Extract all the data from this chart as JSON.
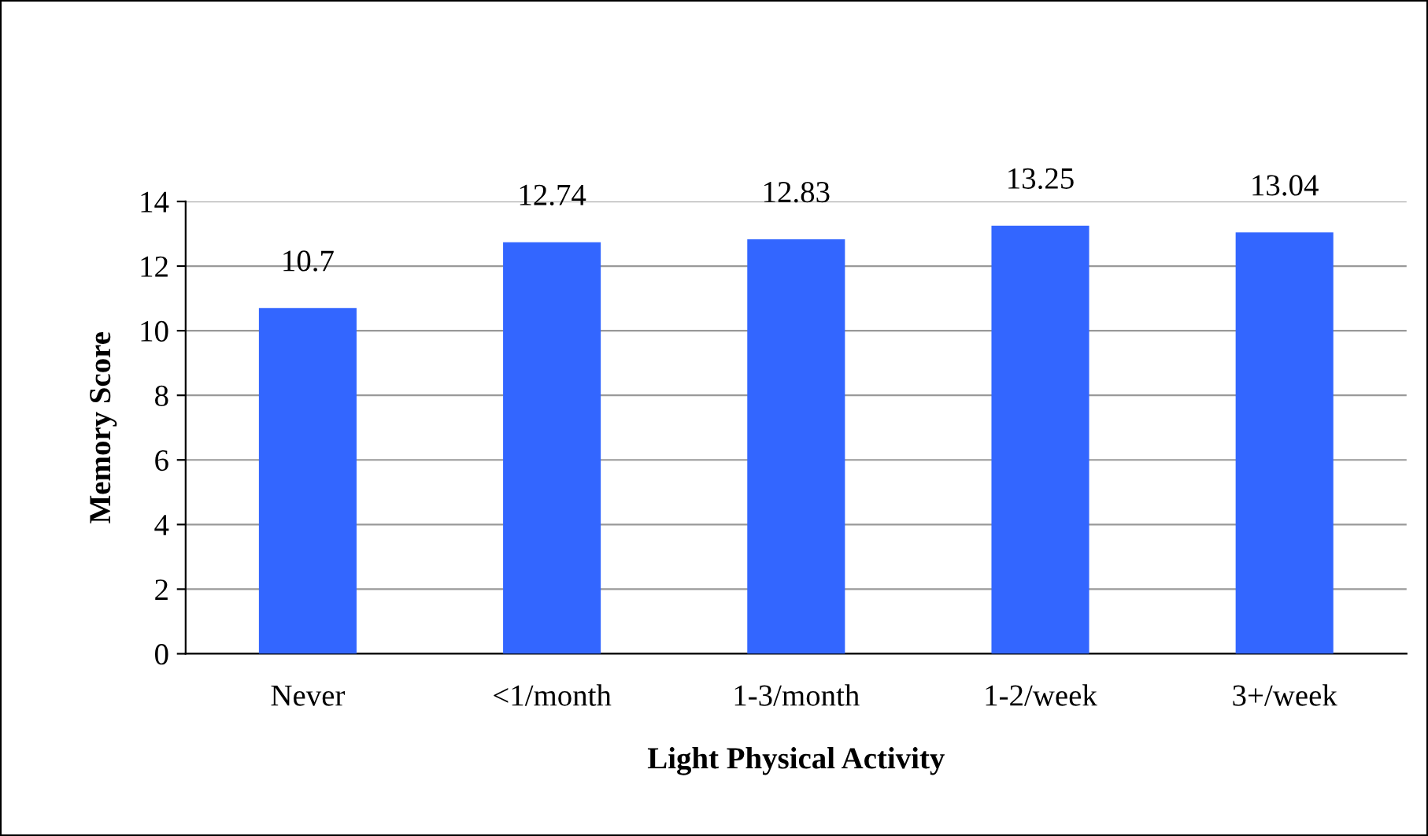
{
  "chart_data": {
    "type": "bar",
    "xlabel": "Light Physical Activity",
    "ylabel": "Memory Score",
    "categories": [
      "Never",
      "<1/month",
      "1-3/month",
      "1-2/week",
      "3+/week"
    ],
    "values": [
      10.7,
      12.74,
      12.83,
      13.25,
      13.04
    ],
    "color": "#3366ff",
    "value_labels": [
      "10.7",
      "12.74",
      "12.83",
      "13.25",
      "13.04"
    ],
    "ylim": [
      0,
      14
    ],
    "yticks": [
      0,
      2,
      4,
      6,
      8,
      10,
      12,
      14
    ],
    "grid": "y"
  }
}
